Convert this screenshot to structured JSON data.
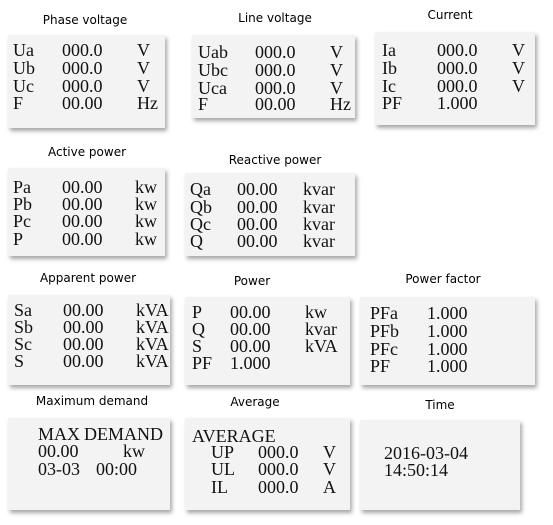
{
  "panels": [
    {
      "title": "Phase voltage",
      "rows": [
        [
          "Ua",
          "000.0",
          "V"
        ],
        [
          "Ub",
          "000.0",
          "V"
        ],
        [
          "Uc",
          "000.0",
          "V"
        ],
        [
          "F",
          "00.00",
          "Hz"
        ]
      ]
    },
    {
      "title": "Line voltage",
      "rows": [
        [
          "Uab",
          "000.0",
          "V"
        ],
        [
          "Ubc",
          "000.0",
          "V"
        ],
        [
          "Uca",
          "000.0",
          "V"
        ],
        [
          "F",
          "00.00",
          "Hz"
        ]
      ]
    },
    {
      "title": "Current",
      "rows": [
        [
          "Ia",
          "000.0",
          "V"
        ],
        [
          "Ib",
          "000.0",
          "V"
        ],
        [
          "Ic",
          "000.0",
          "V"
        ],
        [
          "PF",
          "1.000"
        ]
      ]
    },
    {
      "title": "Active power",
      "rows": [
        [
          "Pa",
          "00.00",
          "kw"
        ],
        [
          "Pb",
          "00.00",
          "kw"
        ],
        [
          "Pc",
          "00.00",
          "kw"
        ],
        [
          "P",
          "00.00",
          "kw"
        ]
      ]
    },
    {
      "title": "Reactive power",
      "rows": [
        [
          "Qa",
          "00.00",
          "kvar"
        ],
        [
          "Qb",
          "00.00",
          "kvar"
        ],
        [
          "Qc",
          "00.00",
          "kvar"
        ],
        [
          "Q",
          "00.00",
          "kvar"
        ]
      ]
    },
    {
      "title": "Apparent power",
      "rows": [
        [
          "Sa",
          "00.00",
          "kVA"
        ],
        [
          "Sb",
          "00.00",
          "kVA"
        ],
        [
          "Sc",
          "00.00",
          "kVA"
        ],
        [
          "S",
          "00.00",
          "kVA"
        ]
      ]
    },
    {
      "title": "Power",
      "rows": [
        [
          "P",
          "00.00",
          "kw"
        ],
        [
          "Q",
          "00.00",
          "kvar"
        ],
        [
          "S",
          "00.00",
          "kVA"
        ],
        [
          "PF",
          "1.000"
        ]
      ]
    },
    {
      "title": "Power factor",
      "rows": [
        [
          "PFa",
          "1.000"
        ],
        [
          "PFb",
          "1.000"
        ],
        [
          "PFc",
          "1.000"
        ],
        [
          "PF",
          "1.000"
        ]
      ]
    },
    {
      "title": "Maximum demand",
      "rows": [
        [
          "MAX",
          "DEMAND"
        ],
        [
          "00.00",
          "kw"
        ],
        [
          "03-03",
          "00:00"
        ]
      ]
    },
    {
      "title": "Average",
      "rows": [
        [
          "AVERAGE"
        ],
        [
          "UP",
          "000.0",
          "V"
        ],
        [
          "UL",
          "000.0",
          "V"
        ],
        [
          "IL",
          "000.0",
          "A"
        ]
      ]
    },
    {
      "title": "Time",
      "rows": [
        [
          "2016-03-04"
        ],
        [
          "14:50:14"
        ]
      ]
    }
  ]
}
